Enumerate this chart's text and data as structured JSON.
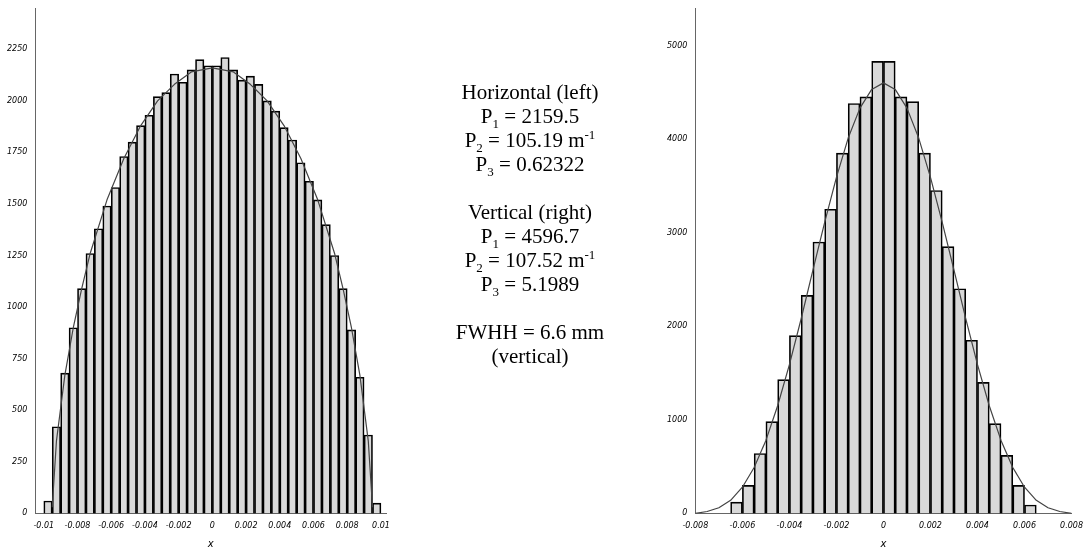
{
  "chart_data": [
    {
      "type": "bar",
      "xlabel": "x",
      "xlim": [
        -0.0105,
        0.0103
      ],
      "ylim": [
        0,
        2450
      ],
      "xticks": [
        -0.01,
        -0.008,
        -0.006,
        -0.004,
        -0.002,
        0,
        0.002,
        0.004,
        0.006,
        0.008,
        0.01
      ],
      "yticks": [
        0,
        250,
        500,
        750,
        1000,
        1250,
        1500,
        1750,
        2000,
        2250
      ],
      "marker": "none",
      "series": [
        {
          "type": "bar",
          "color": "#000000",
          "x": [
            -0.00975,
            -0.00925,
            -0.00875,
            -0.00825,
            -0.00775,
            -0.00725,
            -0.00675,
            -0.00625,
            -0.00575,
            -0.00525,
            -0.00475,
            -0.00425,
            -0.00375,
            -0.00325,
            -0.00275,
            -0.00225,
            -0.00175,
            -0.00125,
            -0.00075,
            -0.00025,
            0.00025,
            0.00075,
            0.00125,
            0.00175,
            0.00225,
            0.00275,
            0.00325,
            0.00375,
            0.00425,
            0.00475,
            0.00525,
            0.00575,
            0.00625,
            0.00675,
            0.00725,
            0.00775,
            0.00825,
            0.00875,
            0.00925,
            0.00975
          ],
          "values": [
            60,
            420,
            680,
            900,
            1090,
            1260,
            1380,
            1490,
            1580,
            1730,
            1800,
            1880,
            1930,
            2020,
            2040,
            2130,
            2090,
            2150,
            2200,
            2170,
            2170,
            2210,
            2150,
            2100,
            2120,
            2080,
            2000,
            1950,
            1870,
            1810,
            1700,
            1610,
            1520,
            1400,
            1250,
            1090,
            890,
            660,
            380,
            50
          ]
        },
        {
          "type": "line",
          "color": "#444444",
          "x": [
            -0.0095,
            -0.00925,
            -0.00875,
            -0.00825,
            -0.00775,
            -0.00725,
            -0.00625,
            -0.00525,
            -0.00425,
            -0.00325,
            -0.00225,
            -0.00125,
            0,
            0.00125,
            0.00225,
            0.00325,
            0.00425,
            0.00525,
            0.00625,
            0.00725,
            0.00775,
            0.00825,
            0.00875,
            0.00925,
            0.0095
          ],
          "values": [
            30,
            350,
            670,
            900,
            1090,
            1260,
            1520,
            1720,
            1880,
            2000,
            2080,
            2140,
            2160,
            2140,
            2080,
            2000,
            1880,
            1720,
            1520,
            1260,
            1090,
            900,
            670,
            350,
            30
          ]
        }
      ]
    },
    {
      "type": "other",
      "annotations": [
        "Horizontal (left)\nP$_{1}$ = 2159.5\nP$_{2}$ = 105.19 m$^{-1}$\nP$_{3}$ = 0.62322",
        "Vertical (right)\nP$_{1}$ = 4596.7\nP$_{2}$ = 107.52 m$^{-1}$\nP$_{3}$ = 5.1989",
        "FWHH = 6.6 mm\n(vertical)"
      ]
    },
    {
      "type": "bar",
      "xlabel": "x",
      "xlim": [
        -0.008,
        0.008
      ],
      "ylim": [
        0,
        5400
      ],
      "xticks": [
        -0.008,
        -0.006,
        -0.004,
        -0.002,
        0,
        0.002,
        0.004,
        0.006,
        0.008
      ],
      "yticks": [
        0,
        1000,
        2000,
        3000,
        4000,
        5000
      ],
      "marker": "none",
      "series": [
        {
          "type": "bar",
          "color": "#000000",
          "x": [
            -0.00625,
            -0.00575,
            -0.00525,
            -0.00475,
            -0.00425,
            -0.00375,
            -0.00325,
            -0.00275,
            -0.00225,
            -0.00175,
            -0.00125,
            -0.00075,
            -0.00025,
            0.00025,
            0.00075,
            0.00125,
            0.00175,
            0.00225,
            0.00275,
            0.00325,
            0.00375,
            0.00425,
            0.00475,
            0.00525,
            0.00575,
            0.00625
          ],
          "values": [
            120,
            300,
            640,
            980,
            1430,
            1900,
            2330,
            2900,
            3250,
            3850,
            4380,
            4450,
            4830,
            4830,
            4450,
            4400,
            3850,
            3450,
            2850,
            2400,
            1850,
            1400,
            960,
            620,
            300,
            90
          ]
        },
        {
          "type": "line",
          "color": "#444444",
          "x": [
            -0.008,
            -0.0075,
            -0.007,
            -0.0065,
            -0.006,
            -0.0055,
            -0.005,
            -0.0045,
            -0.004,
            -0.0035,
            -0.003,
            -0.0025,
            -0.002,
            -0.0015,
            -0.001,
            -0.0005,
            0,
            0.0005,
            0.001,
            0.0015,
            0.002,
            0.0025,
            0.003,
            0.0035,
            0.004,
            0.0045,
            0.005,
            0.0055,
            0.006,
            0.0065,
            0.007,
            0.0075,
            0.008
          ],
          "values": [
            0,
            20,
            60,
            140,
            280,
            490,
            780,
            1150,
            1590,
            2080,
            2600,
            3110,
            3590,
            4010,
            4330,
            4530,
            4600,
            4530,
            4330,
            4010,
            3590,
            3110,
            2600,
            2080,
            1590,
            1150,
            780,
            490,
            280,
            140,
            60,
            20,
            0
          ]
        }
      ]
    }
  ]
}
